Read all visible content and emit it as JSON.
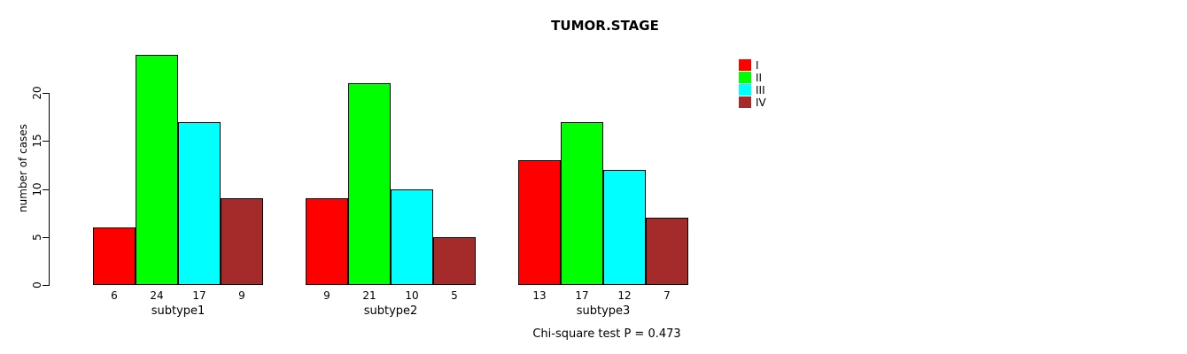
{
  "chart_data": {
    "type": "bar",
    "title": "TUMOR.STAGE",
    "ylabel": "number of cases",
    "xlabel": "",
    "categories": [
      "subtype1",
      "subtype2",
      "subtype3"
    ],
    "series": [
      {
        "name": "I",
        "color": "#FF0000",
        "values": [
          6,
          9,
          13
        ]
      },
      {
        "name": "II",
        "color": "#00FF00",
        "values": [
          24,
          21,
          17
        ]
      },
      {
        "name": "III",
        "color": "#00FFFF",
        "values": [
          17,
          10,
          12
        ]
      },
      {
        "name": "IV",
        "color": "#A52A2A",
        "values": [
          9,
          5,
          7
        ]
      }
    ],
    "yticks": [
      0,
      5,
      10,
      15,
      20
    ],
    "ylim": [
      0,
      24
    ],
    "grid": false,
    "bar_value_labels": true,
    "legend_position": "top-right",
    "annotation": "Chi-square test P = 0.473"
  }
}
